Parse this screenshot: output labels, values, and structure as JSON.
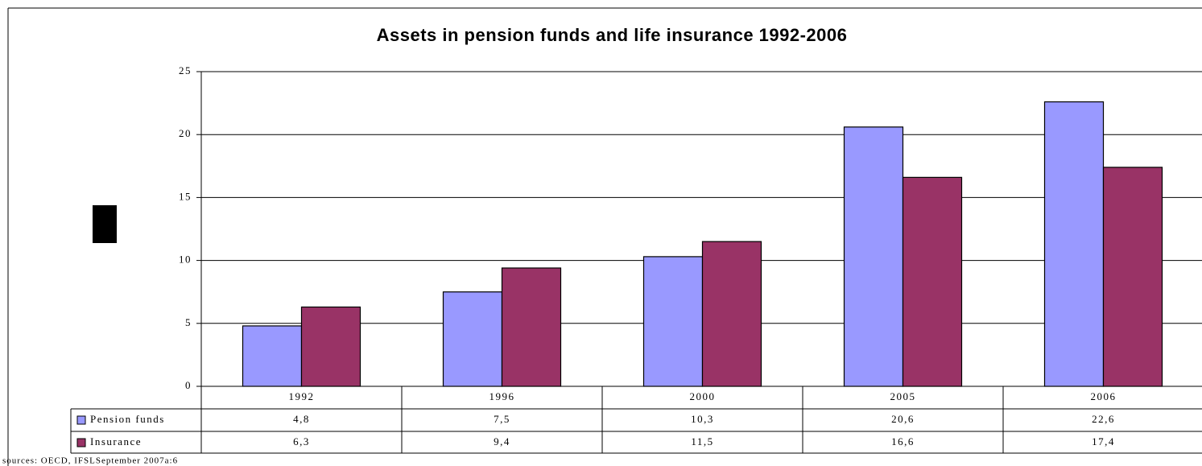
{
  "chart_data": {
    "type": "bar",
    "title": "Assets in pension funds and life insurance 1992-2006",
    "categories": [
      "1992",
      "1996",
      "2000",
      "2005",
      "2006"
    ],
    "series": [
      {
        "name": "Pension funds",
        "color": "#9999ff",
        "values": [
          4.8,
          7.5,
          10.3,
          20.6,
          22.6
        ],
        "value_labels": [
          "4,8",
          "7,5",
          "10,3",
          "20,6",
          "22,6"
        ]
      },
      {
        "name": "Insurance",
        "color": "#993366",
        "values": [
          6.3,
          9.4,
          11.5,
          16.6,
          17.4
        ],
        "value_labels": [
          "6,3",
          "9,4",
          "11,5",
          "16,6",
          "17,4"
        ]
      }
    ],
    "ylim": [
      0,
      25
    ],
    "yticks": [
      0,
      5,
      10,
      15,
      20,
      25
    ],
    "grid": true,
    "source": "sources: OECD, IFSLSeptember 2007a:6"
  }
}
